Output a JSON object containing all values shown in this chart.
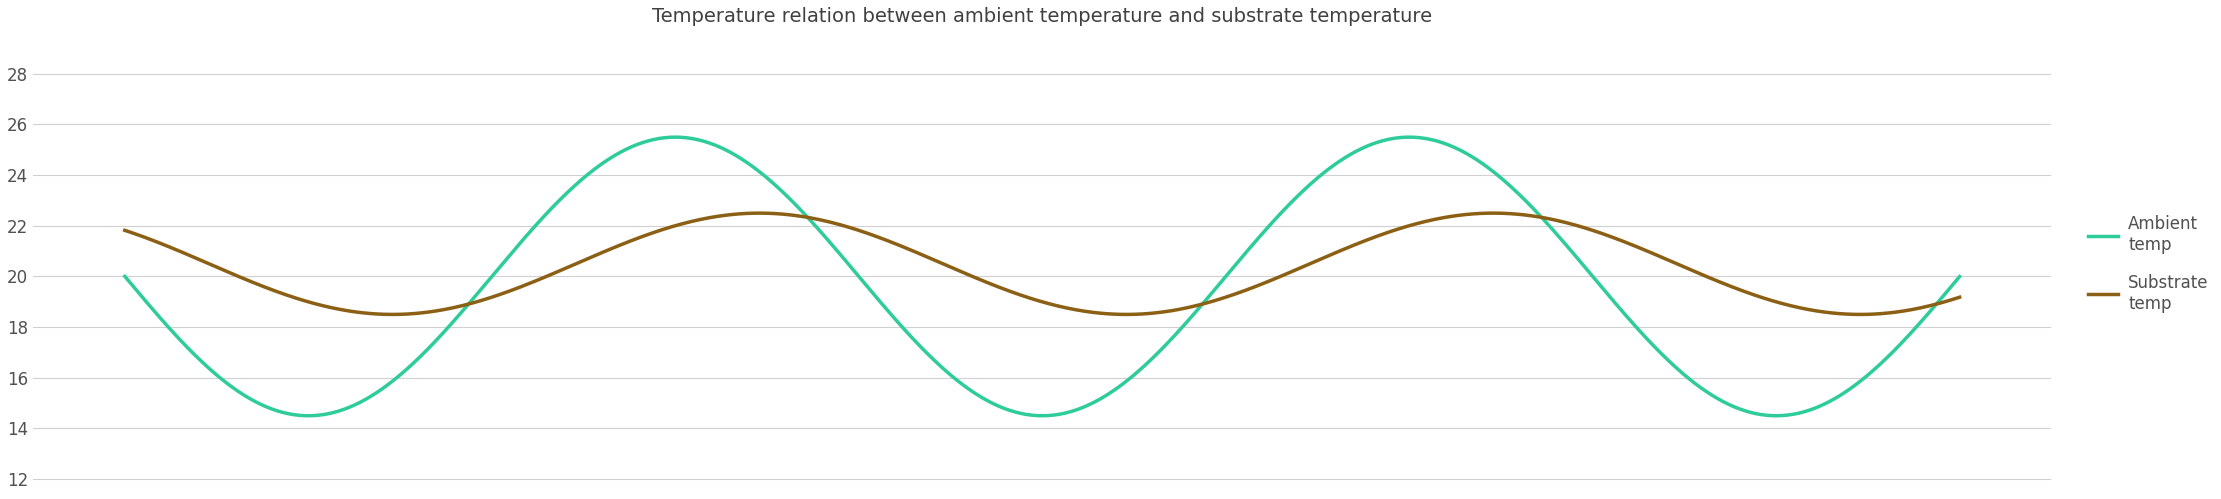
{
  "title": "Temperature relation between ambient temperature and substrate temperature",
  "title_fontsize": 14,
  "title_color": "#404040",
  "ylim": [
    11.5,
    29.5
  ],
  "yticks": [
    12,
    14,
    16,
    18,
    20,
    22,
    24,
    26,
    28
  ],
  "ambient_color": "#2ECC9A",
  "substrate_color": "#8B6014",
  "ambient_label": "Ambient\ntemp",
  "substrate_label": "Substrate\ntemp",
  "line_width": 2.5,
  "bg_color": "#ffffff",
  "grid_color": "#d0d0d0",
  "legend_fontsize": 12,
  "tick_label_color": "#505050",
  "tick_fontsize": 12,
  "n_points": 1000,
  "ambient_mean": 20.0,
  "ambient_amplitude": 5.5,
  "ambient_cycles": 2.5,
  "ambient_phase": 1.57,
  "substrate_mean": 20.5,
  "substrate_amplitude": 2.0,
  "substrate_cycles": 2.5,
  "substrate_phase": 0.85
}
